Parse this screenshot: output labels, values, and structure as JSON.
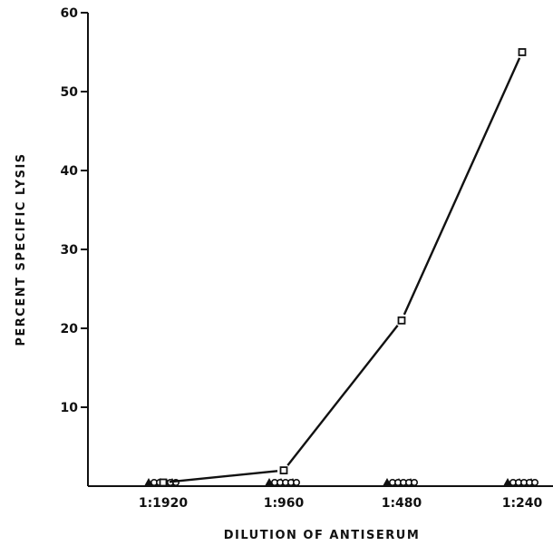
{
  "chart_data": {
    "type": "scatter",
    "title": "",
    "xlabel": "DILUTION OF ANTISERUM",
    "ylabel": "PERCENT SPECIFIC LYSIS",
    "categories": [
      "1:1920",
      "1:960",
      "1:480",
      "1:240"
    ],
    "ylim": [
      0,
      60
    ],
    "yticks": [
      10,
      20,
      30,
      40,
      50,
      60
    ],
    "grid": false,
    "legend": "none",
    "series": [
      {
        "marker": "square",
        "connected": true,
        "values": [
          0,
          2,
          21,
          55
        ]
      },
      {
        "marker": "circle",
        "connected": false,
        "values": [
          0,
          0,
          0,
          0
        ]
      },
      {
        "marker": "triangle",
        "connected": false,
        "values": [
          0,
          0,
          0,
          0
        ]
      }
    ]
  }
}
